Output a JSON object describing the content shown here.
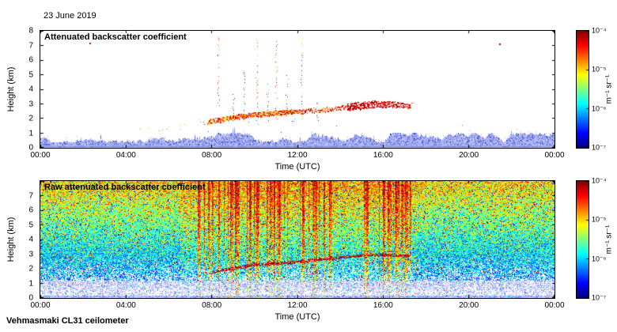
{
  "figure": {
    "date": "23 June 2019",
    "footer": "Vehmasmaki CL31 ceilometer"
  },
  "chart_data": [
    {
      "type": "heatmap",
      "title": "Attenuated backscatter coefficient",
      "xlabel": "Time (UTC)",
      "ylabel": "Height (km)",
      "x_ticks": [
        "00:00",
        "04:00",
        "08:00",
        "12:00",
        "16:00",
        "20:00",
        "00:00"
      ],
      "y_ticks": [
        "0",
        "1",
        "2",
        "3",
        "4",
        "5",
        "6",
        "7",
        "8"
      ],
      "xlim_hours": [
        0,
        24
      ],
      "ylim_km": [
        0,
        8
      ],
      "grid": false,
      "background": "#ffffff",
      "colorbar": {
        "colormap": "jet",
        "scale": "log10",
        "min": "1e-7",
        "max": "1e-4",
        "tick_labels": [
          "10⁻⁴",
          "10⁻⁵",
          "10⁻⁶",
          "10⁻⁷"
        ],
        "unit": "m⁻¹ sr⁻¹",
        "position": "right"
      },
      "features": {
        "boundary_layer": {
          "height_km_range": [
            0,
            0.9
          ],
          "color": "light blue speckle",
          "coverage_hours": [
            0,
            24
          ]
        },
        "layer_track": {
          "hours": [
            4.5,
            6.0,
            7.8,
            9.0,
            10.0,
            11.0,
            12.0,
            13.0,
            14.0,
            14.8,
            15.5,
            16.3,
            17.3
          ],
          "height_km": [
            1.0,
            1.4,
            1.8,
            2.1,
            2.3,
            2.4,
            2.5,
            2.6,
            2.75,
            2.9,
            3.0,
            3.0,
            2.9
          ]
        },
        "dense_red_cluster_hours": [
          14.3,
          17.2
        ],
        "virga_streak_hours": [
          8.3,
          9.0,
          9.5,
          10.1,
          10.6,
          11.0,
          11.5,
          12.2,
          12.9
        ],
        "isolated_high_dots": [
          {
            "hour": 2.3,
            "km": 7.2
          },
          {
            "hour": 21.4,
            "km": 7.15
          }
        ]
      }
    },
    {
      "type": "heatmap",
      "title": "Raw attenuated backscatter coefficient",
      "xlabel": "Time (UTC)",
      "ylabel": "Height (km)",
      "x_ticks": [
        "00:00",
        "04:00",
        "08:00",
        "12:00",
        "16:00",
        "20:00",
        "00:00"
      ],
      "y_ticks": [
        "0",
        "1",
        "2",
        "3",
        "4",
        "5",
        "6",
        "7"
      ],
      "xlim_hours": [
        0,
        24
      ],
      "ylim_km": [
        0,
        8
      ],
      "grid": false,
      "background": "#ffffff",
      "colorbar": {
        "colormap": "jet",
        "scale": "log10",
        "min": "1e-7",
        "max": "1e-4",
        "tick_labels": [
          "10⁻⁴",
          "10⁻⁵",
          "10⁻⁶",
          "10⁻⁷"
        ],
        "unit": "m⁻¹ sr⁻¹",
        "position": "right"
      },
      "features": {
        "description": "dense random noise, value increasing with height: white/pale blue below 1 km, blue-cyan 1-3 km, green 3-6 km, yellow with red speckle above; red vertical daytime noise streaks",
        "streak_windows_hours": [
          [
            7.3,
            13.6
          ],
          [
            15.1,
            17.3
          ]
        ],
        "layer_track": {
          "hours": [
            8.0,
            10.0,
            12.0,
            14.0,
            15.5,
            17.0
          ],
          "height_km": [
            1.8,
            2.3,
            2.5,
            2.8,
            3.0,
            2.9
          ]
        }
      }
    }
  ]
}
